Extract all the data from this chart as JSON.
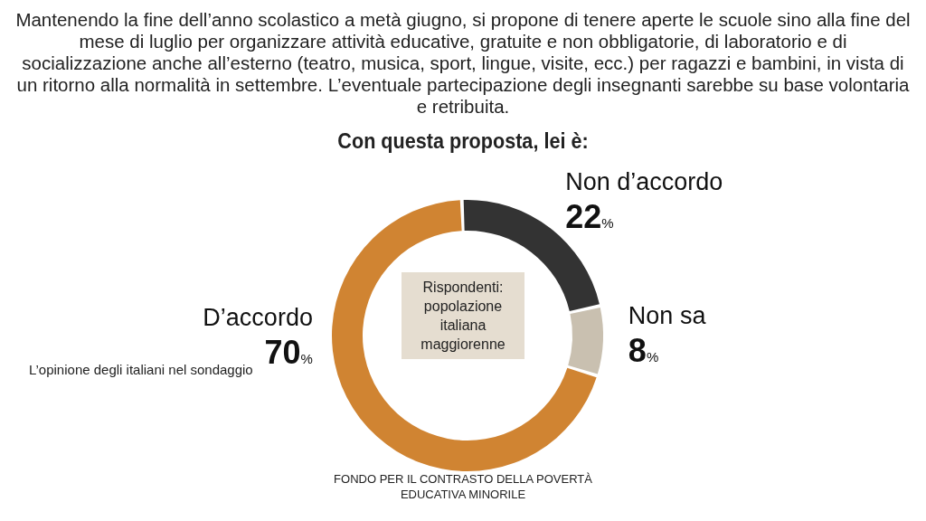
{
  "chart_data": {
    "type": "donut",
    "title": "Mantenendo la fine dell’anno scolastico a metà giugno, si propone di tenere aperte le scuole sino alla fine del mese di luglio per organizzare attività educative, gratuite e non obbligatorie, di laboratorio e di socializzazione anche all’esterno (teatro, musica, sport, lingue, visite, ecc.) per ragazzi e bambini, in vista di un ritorno alla normalità in settembre. L’eventuale partecipazione degli insegnanti sarebbe su base volontaria e retribuita.",
    "subtitle": "Con questa proposta, lei è:",
    "categories": [
      "D’accordo",
      "Non d’accordo",
      "Non sa"
    ],
    "values": [
      70,
      22,
      8
    ],
    "colors": [
      "#d08432",
      "#333333",
      "#c9c0b0"
    ],
    "value_labels": [
      "70%",
      "22%",
      "8%"
    ],
    "annotations": [
      "Rispondenti: popolazione italiana maggiorenne",
      "L’opinione degli italiani nel sondaggio",
      "FONDO PER IL CONTRASTO DELLA POVERTÀ EDUCATIVA MINORILE"
    ],
    "legend": false
  }
}
